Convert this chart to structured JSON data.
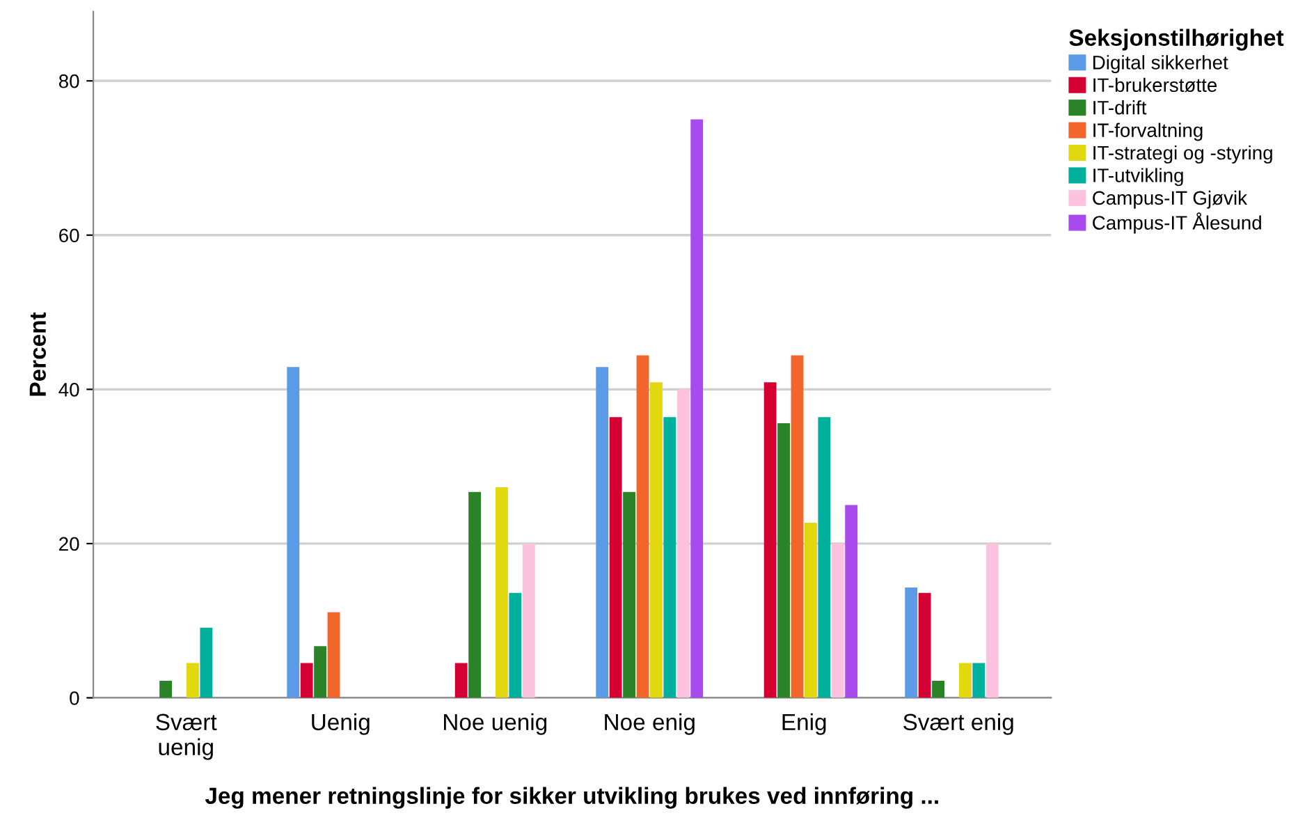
{
  "chart_data": {
    "type": "bar",
    "xlabel": "Jeg mener retningslinje for sikker utvikling brukes ved innføring ...",
    "ylabel": "Percent",
    "legend_title": "Seksjonstilhørighet",
    "categories": [
      "Svært\nuenig",
      "Uenig",
      "Noe uenig",
      "Noe enig",
      "Enig",
      "Svært enig"
    ],
    "series": [
      {
        "name": "Digital sikkerhet",
        "color": "#5b9ae6",
        "values": [
          0,
          42.9,
          0,
          42.9,
          0,
          14.3
        ]
      },
      {
        "name": "IT-brukerstøtte",
        "color": "#d50032",
        "values": [
          0,
          4.5,
          4.5,
          36.4,
          40.9,
          13.6
        ]
      },
      {
        "name": "IT-drift",
        "color": "#2a8427",
        "values": [
          2.2,
          6.7,
          26.7,
          26.7,
          35.6,
          2.2
        ]
      },
      {
        "name": "IT-forvaltning",
        "color": "#f2662b",
        "values": [
          0,
          11.1,
          0,
          44.4,
          44.4,
          0
        ]
      },
      {
        "name": "IT-strategi og -styring",
        "color": "#e2d80f",
        "values": [
          4.5,
          0,
          27.3,
          40.9,
          22.7,
          4.5
        ]
      },
      {
        "name": "IT-utvikling",
        "color": "#00b09c",
        "values": [
          9.1,
          0,
          13.6,
          36.4,
          36.4,
          4.5
        ]
      },
      {
        "name": "Campus-IT Gjøvik",
        "color": "#fdc2de",
        "values": [
          0,
          0,
          20,
          40,
          20,
          20
        ]
      },
      {
        "name": "Campus-IT Ålesund",
        "color": "#a94aee",
        "values": [
          0,
          0,
          0,
          75,
          25,
          0
        ]
      }
    ],
    "ylim": [
      0,
      89
    ],
    "yticks": [
      0,
      20,
      40,
      60,
      80
    ],
    "grid": "y",
    "legend": "right"
  }
}
